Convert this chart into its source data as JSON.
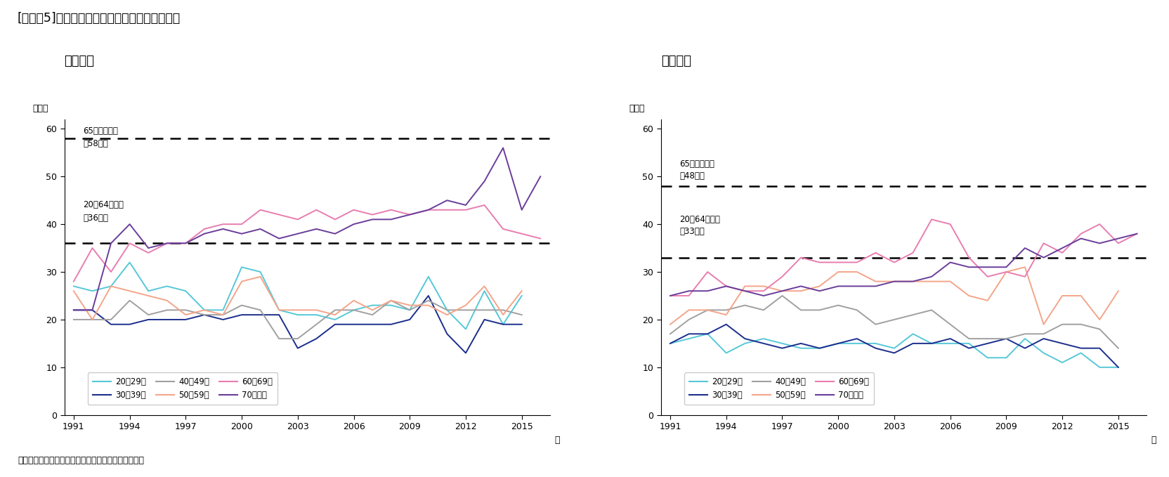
{
  "title": "[図表－5]　「運動習慣のある者」の割合の推移",
  "subtitle_male": "【男性】",
  "subtitle_female": "【女性】",
  "source": "（資料）厚生労働省「国民健康・栄養調査（各年）」",
  "years": [
    1991,
    1992,
    1993,
    1994,
    1995,
    1996,
    1997,
    1998,
    1999,
    2000,
    2001,
    2002,
    2003,
    2004,
    2005,
    2006,
    2007,
    2008,
    2009,
    2010,
    2011,
    2012,
    2013,
    2014,
    2015,
    2016
  ],
  "male": {
    "age20_29": [
      27,
      26,
      27,
      32,
      26,
      27,
      26,
      22,
      22,
      31,
      30,
      22,
      21,
      21,
      20,
      22,
      23,
      23,
      22,
      29,
      22,
      18,
      26,
      19,
      25,
      null
    ],
    "age30_39": [
      22,
      22,
      19,
      19,
      20,
      20,
      20,
      21,
      20,
      21,
      21,
      21,
      14,
      16,
      19,
      19,
      19,
      19,
      20,
      25,
      17,
      13,
      20,
      19,
      19,
      null
    ],
    "age40_49": [
      20,
      20,
      20,
      24,
      21,
      22,
      22,
      21,
      21,
      23,
      22,
      16,
      16,
      19,
      22,
      22,
      21,
      24,
      22,
      24,
      22,
      22,
      22,
      22,
      21,
      null
    ],
    "age50_59": [
      26,
      20,
      27,
      26,
      25,
      24,
      21,
      22,
      21,
      28,
      29,
      22,
      22,
      22,
      21,
      24,
      22,
      24,
      23,
      23,
      21,
      23,
      27,
      21,
      26,
      null
    ],
    "age60_69": [
      28,
      35,
      30,
      36,
      34,
      36,
      36,
      39,
      40,
      40,
      43,
      42,
      41,
      43,
      41,
      43,
      42,
      43,
      42,
      43,
      43,
      43,
      44,
      39,
      38,
      37
    ],
    "age70plus": [
      22,
      22,
      36,
      40,
      35,
      36,
      36,
      38,
      39,
      38,
      39,
      37,
      38,
      39,
      38,
      40,
      41,
      41,
      42,
      43,
      45,
      44,
      49,
      56,
      43,
      50
    ]
  },
  "female": {
    "age20_29": [
      15,
      16,
      17,
      13,
      15,
      16,
      15,
      14,
      14,
      15,
      15,
      15,
      14,
      17,
      15,
      15,
      15,
      12,
      12,
      16,
      13,
      11,
      13,
      10,
      10,
      null
    ],
    "age30_39": [
      15,
      17,
      17,
      19,
      16,
      15,
      14,
      15,
      14,
      15,
      16,
      14,
      13,
      15,
      15,
      16,
      14,
      15,
      16,
      14,
      16,
      15,
      14,
      14,
      10,
      null
    ],
    "age40_49": [
      17,
      20,
      22,
      22,
      23,
      22,
      25,
      22,
      22,
      23,
      22,
      19,
      20,
      21,
      22,
      19,
      16,
      16,
      16,
      17,
      17,
      19,
      19,
      18,
      14,
      null
    ],
    "age50_59": [
      19,
      22,
      22,
      21,
      27,
      27,
      26,
      26,
      27,
      30,
      30,
      28,
      28,
      28,
      28,
      28,
      25,
      24,
      30,
      31,
      19,
      25,
      25,
      20,
      26,
      null
    ],
    "age60_69": [
      25,
      25,
      30,
      27,
      26,
      26,
      29,
      33,
      32,
      32,
      32,
      34,
      32,
      34,
      41,
      40,
      33,
      29,
      30,
      29,
      36,
      34,
      38,
      40,
      36,
      38
    ],
    "age70plus": [
      25,
      26,
      26,
      27,
      26,
      25,
      26,
      27,
      26,
      27,
      27,
      27,
      28,
      28,
      29,
      32,
      31,
      31,
      31,
      35,
      33,
      35,
      37,
      36,
      37,
      38
    ]
  },
  "male_targets": {
    "age65plus": 58,
    "age20_64": 36
  },
  "female_targets": {
    "age65plus": 48,
    "age20_64": 33
  },
  "colors": {
    "age20_29": "#56c8d8",
    "age30_39": "#1b2e8c",
    "age40_49": "#a0a0a0",
    "age50_59": "#f4a58a",
    "age60_69": "#e87db0",
    "age70plus": "#6a3d9a"
  },
  "legend_labels": {
    "age20_29": "20～29歳",
    "age30_39": "30～39歳",
    "age40_49": "40～49歳",
    "age50_59": "50～59歳",
    "age60_69": "60～69歳",
    "age70plus": "70歳以上"
  },
  "male_annot_65": "65歳以上目標",
  "male_annot_65b": "（58％）",
  "male_annot_20": "20～64歳目標",
  "male_annot_20b": "（36％）",
  "female_annot_65": "65歳以上目標",
  "female_annot_65b": "（48％）",
  "female_annot_20": "20～64歳目標",
  "female_annot_20b": "（33％）",
  "percent_label": "（％）",
  "year_label": "年"
}
